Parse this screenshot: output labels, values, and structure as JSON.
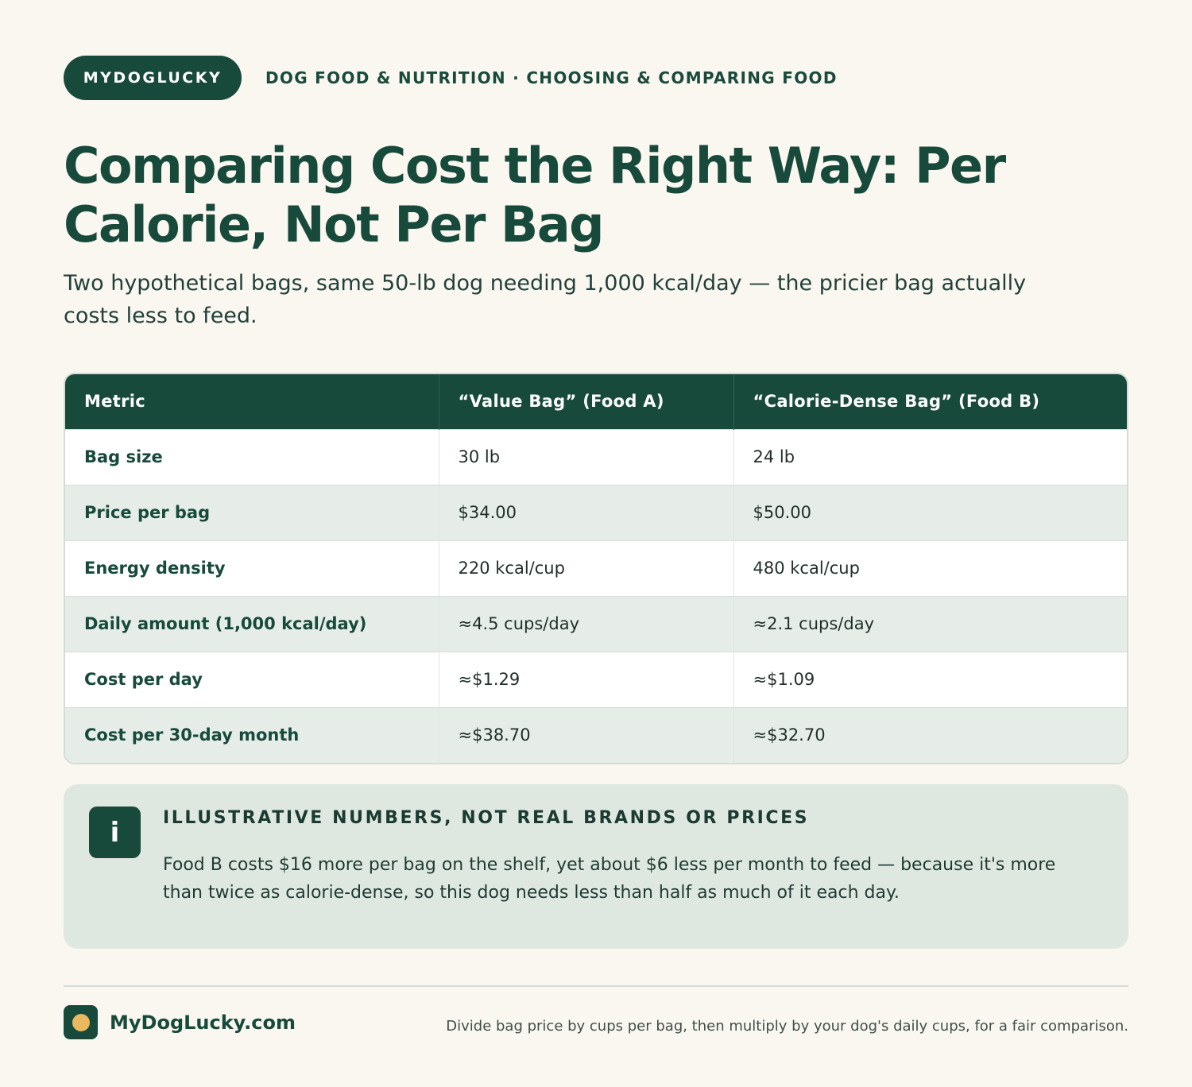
{
  "header": {
    "brand": "MYDOGLUCKY",
    "breadcrumb": "DOG FOOD & NUTRITION · CHOOSING & COMPARING FOOD"
  },
  "title": "Comparing Cost the Right Way: Per Calorie, Not Per Bag",
  "subtitle": "Two hypothetical bags, same 50-lb dog needing 1,000 kcal/day — the pricier bag actually costs less to feed.",
  "table": {
    "headers": [
      "Metric",
      "“Value Bag” (Food A)",
      "“Calorie-Dense Bag” (Food B)"
    ],
    "rows": [
      [
        "Bag size",
        "30 lb",
        "24 lb"
      ],
      [
        "Price per bag",
        "$34.00",
        "$50.00"
      ],
      [
        "Energy density",
        "220 kcal/cup",
        "480 kcal/cup"
      ],
      [
        "Daily amount (1,000 kcal/day)",
        "≈4.5 cups/day",
        "≈2.1 cups/day"
      ],
      [
        "Cost per day",
        "≈$1.29",
        "≈$1.09"
      ],
      [
        "Cost per 30-day month",
        "≈$38.70",
        "≈$32.70"
      ]
    ]
  },
  "callout": {
    "icon": "info-icon",
    "icon_glyph": "i",
    "heading": "ILLUSTRATIVE NUMBERS, NOT REAL BRANDS OR PRICES",
    "body": "Food B costs $16 more per bag on the shelf, yet about $6 less per month to feed — because it's more than twice as calorie-dense, so this dog needs less than half as much of it each day."
  },
  "footer": {
    "site": "MyDogLucky.com",
    "note": "Divide bag price by cups per bag, then multiply by your dog's daily cups, for a fair comparison."
  },
  "colors": {
    "brand_green": "#184a3c",
    "accent_gold": "#e9b85f",
    "background": "#faf7f0"
  }
}
